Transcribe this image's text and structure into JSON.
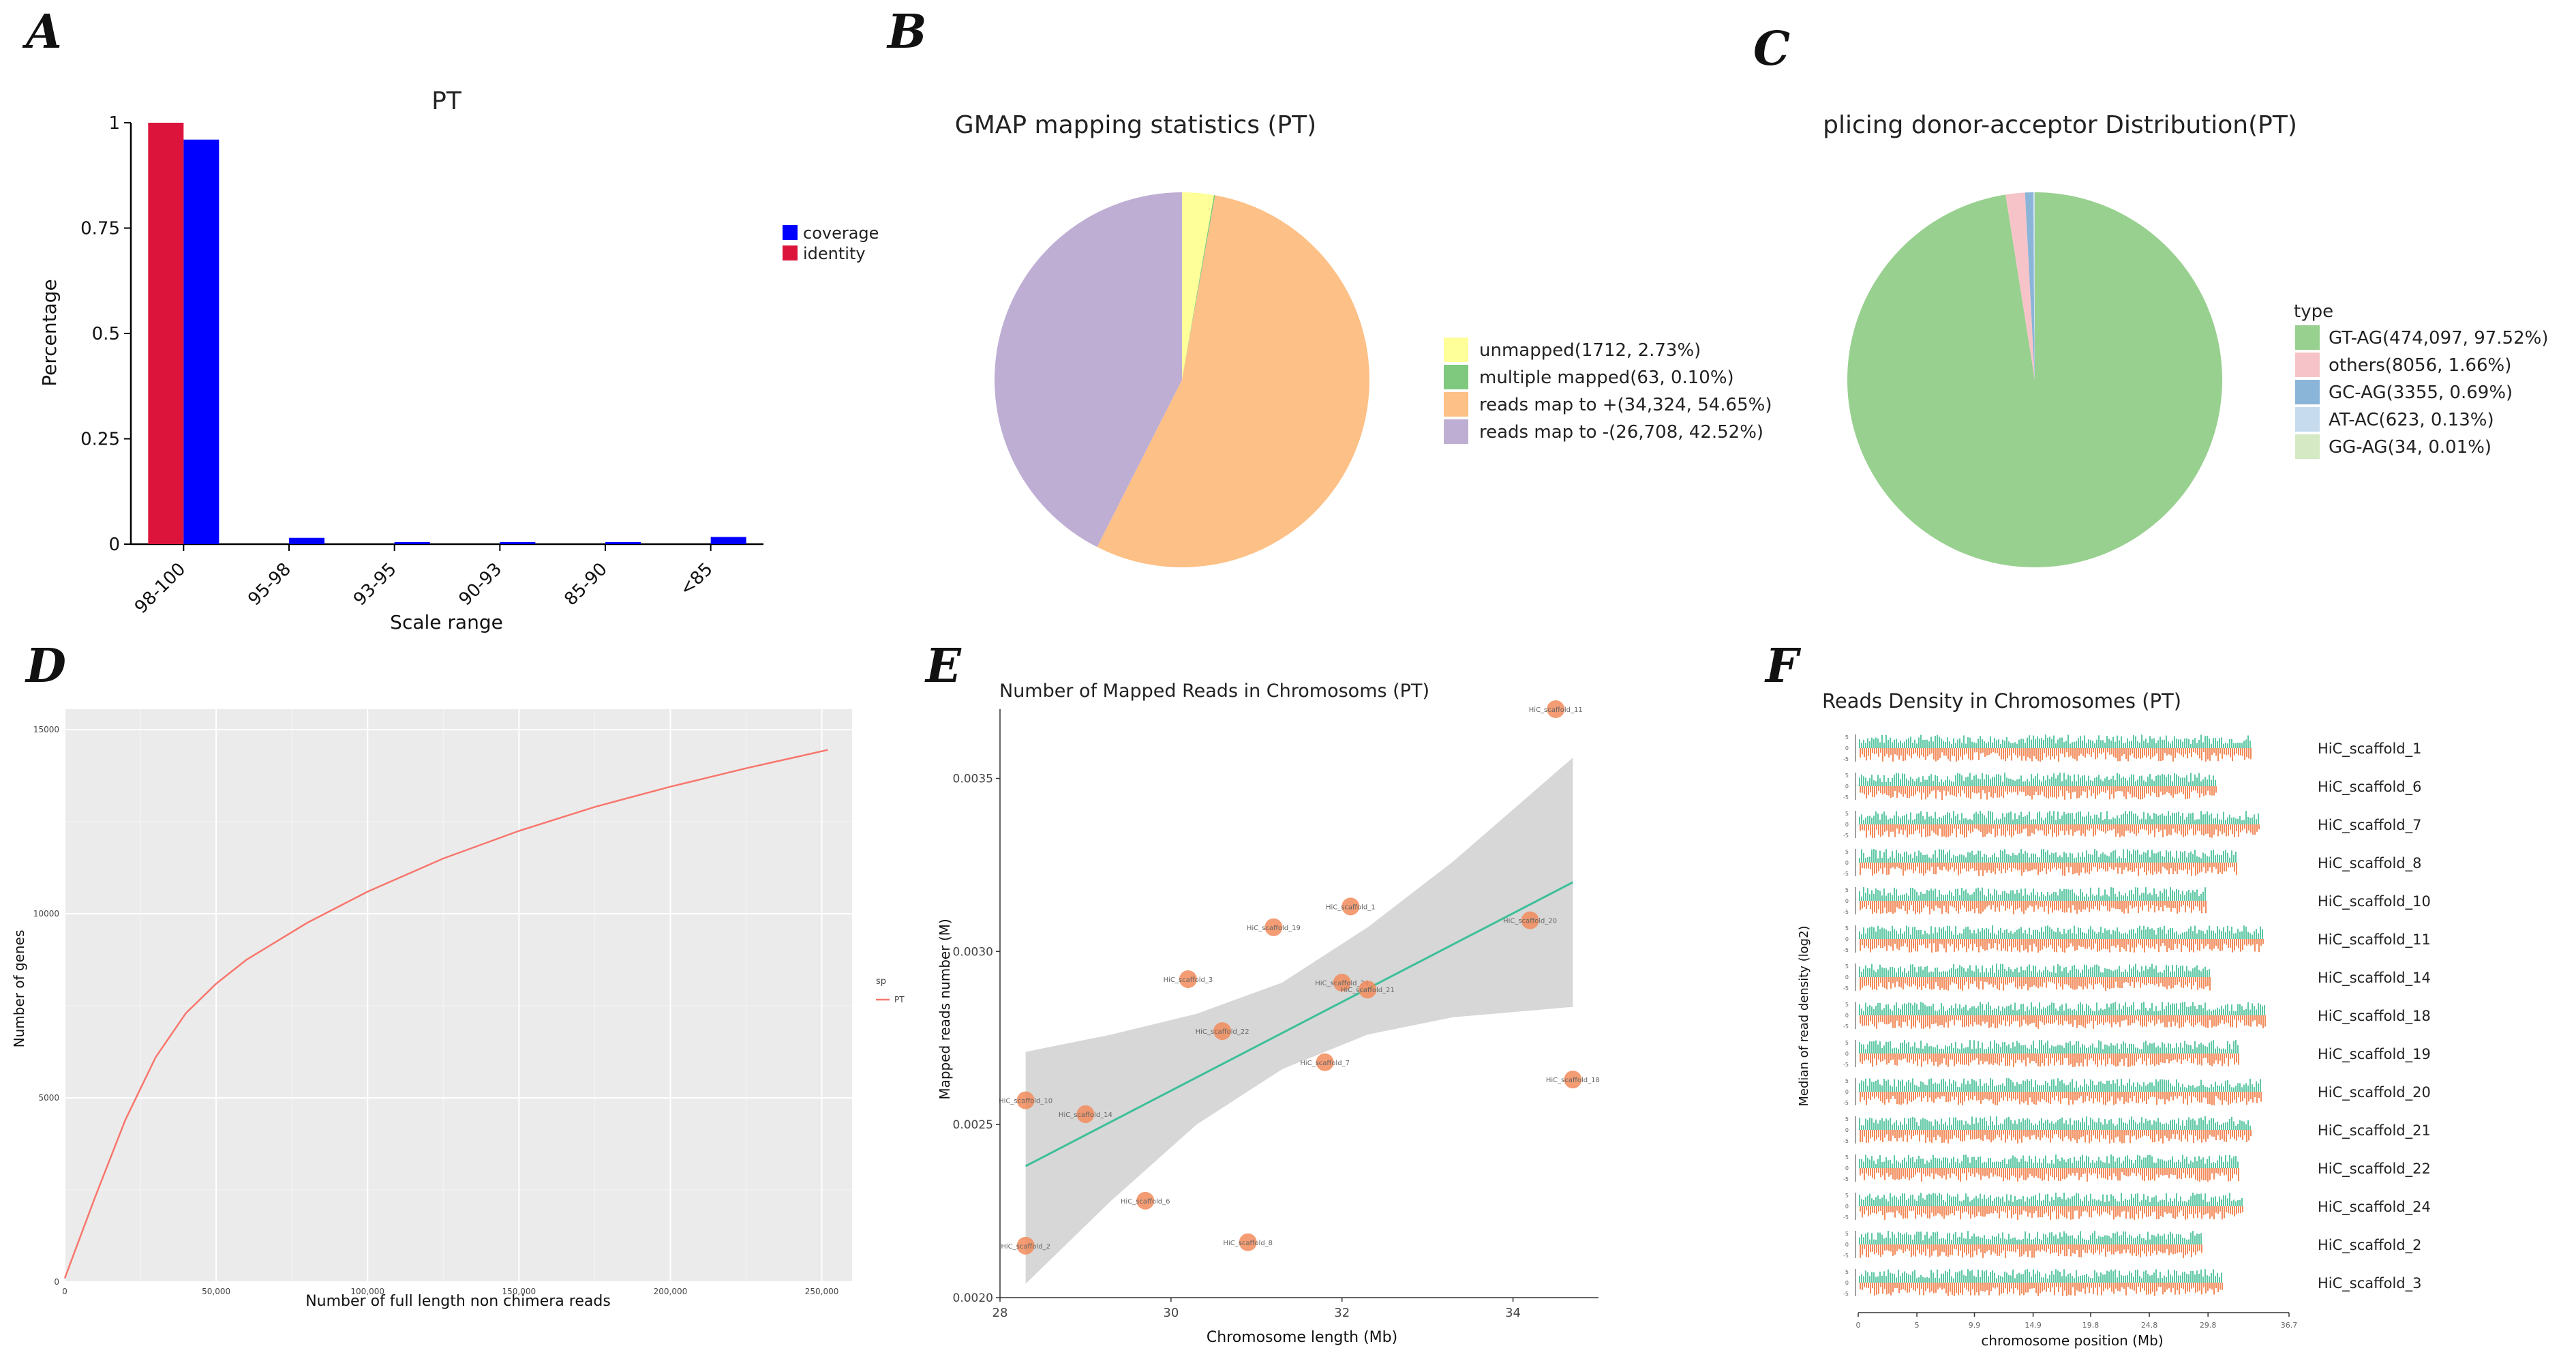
{
  "panel_labels": [
    "A",
    "B",
    "C",
    "D",
    "E",
    "F"
  ],
  "chart_data": [
    {
      "panel": "A",
      "type": "bar",
      "title": "PT",
      "xlabel": "Scale range",
      "ylabel": "Percentage",
      "ylim": [
        0,
        1
      ],
      "yticks": [
        "0",
        "0.25",
        "0.5",
        "0.75",
        "1"
      ],
      "categories": [
        "98-100",
        "95-98",
        "93-95",
        "90-93",
        "85-90",
        "<85"
      ],
      "series": [
        {
          "name": "identity",
          "color": "#dc143c",
          "values": [
            1.0,
            0.0,
            0.0,
            0.0,
            0.0,
            0.0
          ]
        },
        {
          "name": "coverage",
          "color": "#0000ff",
          "values": [
            0.96,
            0.015,
            0.004,
            0.004,
            0.005,
            0.017
          ]
        }
      ],
      "legend": [
        "coverage",
        "identity"
      ]
    },
    {
      "panel": "B",
      "type": "pie",
      "title": "GMAP mapping statistics (PT)",
      "slices": [
        {
          "label": "unmapped(1712, 2.73%)",
          "value": 2.73,
          "color": "#ffff99"
        },
        {
          "label": "multiple mapped(63, 0.10%)",
          "value": 0.1,
          "color": "#7fc97f"
        },
        {
          "label": "reads map to +(34,324, 54.65%)",
          "value": 54.65,
          "color": "#fdc086"
        },
        {
          "label": "reads map to -(26,708, 42.52%)",
          "value": 42.52,
          "color": "#beaed4"
        }
      ]
    },
    {
      "panel": "C",
      "type": "pie",
      "title": "plicing donor-acceptor Distribution(PT)",
      "legend_title": "type",
      "slices": [
        {
          "label": "GT-AG(474,097, 97.52%)",
          "value": 97.52,
          "color": "#98d08f"
        },
        {
          "label": "others(8056, 1.66%)",
          "value": 1.66,
          "color": "#f6c4c8"
        },
        {
          "label": "GC-AG(3355, 0.69%)",
          "value": 0.69,
          "color": "#8ab4d8"
        },
        {
          "label": "AT-AC(623, 0.13%)",
          "value": 0.13,
          "color": "#c6dbee"
        },
        {
          "label": "GG-AG(34, 0.01%)",
          "value": 0.01,
          "color": "#d4e9c4"
        }
      ]
    },
    {
      "panel": "D",
      "type": "line",
      "xlabel": "Number of full length non chimera reads",
      "ylabel": "Number of genes",
      "xlim": [
        0,
        260000
      ],
      "ylim": [
        0,
        15000
      ],
      "xticks": [
        0,
        50000,
        100000,
        150000,
        200000,
        250000
      ],
      "xtick_labels": [
        "0",
        "50,000",
        "100,000",
        "150,000",
        "200,000",
        "250,000"
      ],
      "yticks": [
        0,
        5000,
        10000,
        15000
      ],
      "ytick_labels": [
        "0",
        "5000",
        "10000",
        "15000"
      ],
      "legend_title": "sp",
      "series": [
        {
          "name": "PT",
          "color": "#f8766d",
          "x": [
            0,
            10000,
            20000,
            30000,
            40000,
            50000,
            60000,
            80000,
            100000,
            125000,
            150000,
            175000,
            200000,
            225000,
            252000
          ],
          "y": [
            100,
            2300,
            4400,
            6100,
            7300,
            8100,
            8750,
            9750,
            10600,
            11500,
            12250,
            12900,
            13450,
            13950,
            14450
          ]
        }
      ]
    },
    {
      "panel": "E",
      "type": "scatter",
      "title": "Number of Mapped Reads in Chromosoms (PT)",
      "xlabel": "Chromosome length (Mb)",
      "ylabel": "Mapped reads number (M)",
      "xlim": [
        28,
        35
      ],
      "ylim": [
        0.002,
        0.0037
      ],
      "xticks": [
        28,
        30,
        32,
        34
      ],
      "yticks": [
        0.002,
        0.0025,
        0.003,
        0.0035
      ],
      "ytick_labels": [
        "0.0020",
        "0.0025",
        "0.0030",
        "0.0035"
      ],
      "points": [
        {
          "label": "HiC_scaffold_11",
          "x": 34.5,
          "y": 0.0037
        },
        {
          "label": "HiC_scaffold_1",
          "x": 32.1,
          "y": 0.00313
        },
        {
          "label": "HiC_scaffold_19",
          "x": 31.2,
          "y": 0.00307
        },
        {
          "label": "HiC_scaffold_20",
          "x": 34.2,
          "y": 0.00309
        },
        {
          "label": "HiC_scaffold_3",
          "x": 30.2,
          "y": 0.00292
        },
        {
          "label": "HiC_scaffold_24",
          "x": 32.0,
          "y": 0.00291
        },
        {
          "label": "HiC_scaffold_21",
          "x": 32.3,
          "y": 0.00289
        },
        {
          "label": "HiC_scaffold_22",
          "x": 30.6,
          "y": 0.00277
        },
        {
          "label": "HiC_scaffold_7",
          "x": 31.8,
          "y": 0.00268
        },
        {
          "label": "HiC_scaffold_18",
          "x": 34.7,
          "y": 0.00263
        },
        {
          "label": "HiC_scaffold_10",
          "x": 28.3,
          "y": 0.00257
        },
        {
          "label": "HiC_scaffold_14",
          "x": 29.0,
          "y": 0.00253
        },
        {
          "label": "HiC_scaffold_6",
          "x": 29.7,
          "y": 0.00228
        },
        {
          "label": "HiC_scaffold_8",
          "x": 30.9,
          "y": 0.00216
        },
        {
          "label": "HiC_scaffold_2",
          "x": 28.3,
          "y": 0.00215
        }
      ],
      "fit_line": {
        "x": [
          28.3,
          34.7
        ],
        "y": [
          0.00238,
          0.0032
        ],
        "color": "#3dbf99"
      },
      "ci_band": {
        "x": [
          28.3,
          29.3,
          30.3,
          31.3,
          32.3,
          33.3,
          34.7
        ],
        "lower": [
          0.00204,
          0.00228,
          0.0025,
          0.00266,
          0.00276,
          0.00281,
          0.00284
        ],
        "upper": [
          0.00271,
          0.00276,
          0.00282,
          0.00291,
          0.00307,
          0.00326,
          0.00356
        ]
      }
    },
    {
      "panel": "F",
      "type": "area",
      "title": "Reads Density in Chromosomes (PT)",
      "xlabel": "chromosome position (Mb)",
      "ylabel": "Median of read density (log2)",
      "xlim": [
        0,
        36.7
      ],
      "xticks": [
        0,
        5,
        9.9,
        14.9,
        19.8,
        24.8,
        29.8,
        36.7
      ],
      "xtick_labels": [
        "0",
        "5",
        "9.9",
        "14.9",
        "19.8",
        "24.8",
        "29.8",
        "36.7"
      ],
      "colors": {
        "upper": "#5cc7a3",
        "lower": "#f28b5b"
      },
      "tracks": [
        {
          "name": "HiC_scaffold_1",
          "length": 33.4
        },
        {
          "name": "HiC_scaffold_6",
          "length": 30.6
        },
        {
          "name": "HiC_scaffold_7",
          "length": 34.2
        },
        {
          "name": "HiC_scaffold_8",
          "length": 32.2
        },
        {
          "name": "HiC_scaffold_10",
          "length": 29.7
        },
        {
          "name": "HiC_scaffold_11",
          "length": 34.5
        },
        {
          "name": "HiC_scaffold_14",
          "length": 30.0
        },
        {
          "name": "HiC_scaffold_18",
          "length": 34.7
        },
        {
          "name": "HiC_scaffold_19",
          "length": 32.5
        },
        {
          "name": "HiC_scaffold_20",
          "length": 34.3
        },
        {
          "name": "HiC_scaffold_21",
          "length": 33.4
        },
        {
          "name": "HiC_scaffold_22",
          "length": 32.5
        },
        {
          "name": "HiC_scaffold_24",
          "length": 32.8
        },
        {
          "name": "HiC_scaffold_2",
          "length": 29.3
        },
        {
          "name": "HiC_scaffold_3",
          "length": 31.1
        }
      ],
      "track_ticks": [
        "-5",
        "0",
        "5"
      ]
    }
  ]
}
